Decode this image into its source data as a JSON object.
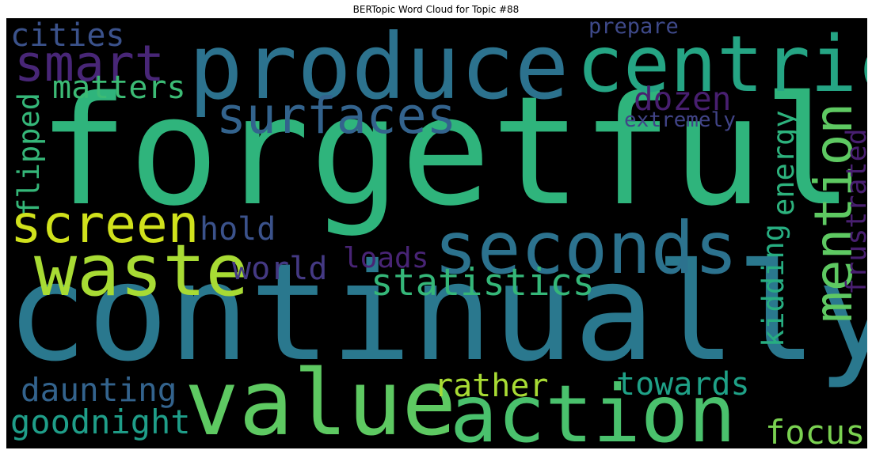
{
  "title": "BERTopic Word Cloud for Topic #88",
  "words": [
    {
      "text": "forgetful",
      "color": "#2fb47c"
    },
    {
      "text": "continually",
      "color": "#2a788e"
    },
    {
      "text": "produce",
      "color": "#2c728e"
    },
    {
      "text": "centric",
      "color": "#25a584"
    },
    {
      "text": "value",
      "color": "#5ec962"
    },
    {
      "text": "action",
      "color": "#4ac16d"
    },
    {
      "text": "seconds",
      "color": "#2c728e"
    },
    {
      "text": "waste",
      "color": "#a8db34"
    },
    {
      "text": "mention",
      "color": "#5ec962"
    },
    {
      "text": "surfaces",
      "color": "#33638d"
    },
    {
      "text": "screen",
      "color": "#d0e11c"
    },
    {
      "text": "smart",
      "color": "#482677"
    },
    {
      "text": "statistics",
      "color": "#35b779"
    },
    {
      "text": "cities",
      "color": "#3b528b"
    },
    {
      "text": "matters",
      "color": "#3cbb75"
    },
    {
      "text": "dozen",
      "color": "#481f70"
    },
    {
      "text": "daunting",
      "color": "#33638d"
    },
    {
      "text": "goodnight",
      "color": "#1f9e89"
    },
    {
      "text": "focus",
      "color": "#7ad151"
    },
    {
      "text": "towards",
      "color": "#1fa187"
    },
    {
      "text": "rather",
      "color": "#a8db34"
    },
    {
      "text": "world",
      "color": "#443983"
    },
    {
      "text": "loads",
      "color": "#482475"
    },
    {
      "text": "hold",
      "color": "#3b528b"
    },
    {
      "text": "extremely",
      "color": "#414487"
    },
    {
      "text": "prepare",
      "color": "#3e4989"
    },
    {
      "text": "energy",
      "color": "#2db27d"
    },
    {
      "text": "flipped",
      "color": "#35b779"
    },
    {
      "text": "kidding",
      "color": "#27ad81"
    },
    {
      "text": "frustrated",
      "color": "#481f70"
    }
  ]
}
